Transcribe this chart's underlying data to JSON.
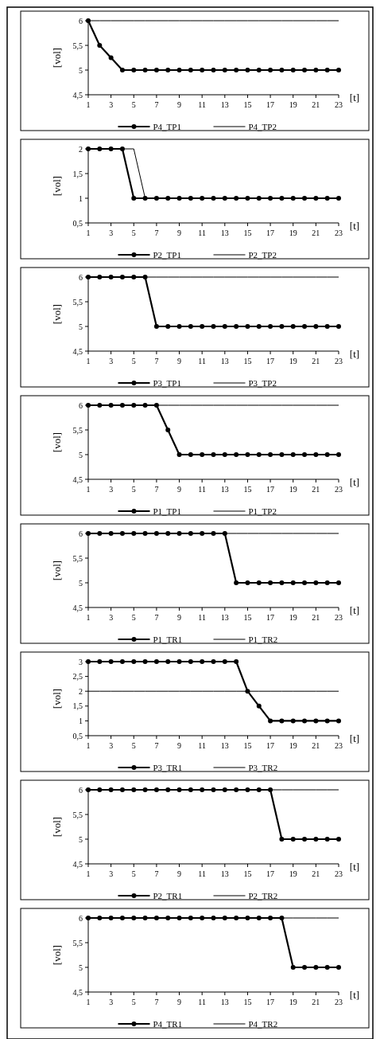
{
  "chart_data": [
    {
      "type": "line",
      "ylabel": "[vol]",
      "xlabel": "[t]",
      "x": [
        1,
        2,
        3,
        4,
        5,
        6,
        7,
        8,
        9,
        10,
        11,
        12,
        13,
        14,
        15,
        16,
        17,
        18,
        19,
        20,
        21,
        22,
        23
      ],
      "xlim": [
        1,
        23
      ],
      "xticks": [
        1,
        3,
        5,
        7,
        9,
        11,
        13,
        15,
        17,
        19,
        21,
        23
      ],
      "ylim": [
        4.5,
        6
      ],
      "yticks": [
        {
          "value": 4.5,
          "label": "4,5"
        },
        5,
        {
          "value": 5.5,
          "label": "5,5"
        },
        6
      ],
      "legend": "bottom",
      "series": [
        {
          "name": "P4_TP1",
          "color": "#000000",
          "marker": "circle",
          "values": [
            6,
            5.5,
            5.25,
            5,
            5,
            5,
            5,
            5,
            5,
            5,
            5,
            5,
            5,
            5,
            5,
            5,
            5,
            5,
            5,
            5,
            5,
            5,
            5
          ]
        },
        {
          "name": "P4_TP2",
          "color": "#000000",
          "marker": "none",
          "values": [
            6,
            6,
            6,
            6,
            6,
            6,
            6,
            6,
            6,
            6,
            6,
            6,
            6,
            6,
            6,
            6,
            6,
            6,
            6,
            6,
            6,
            6,
            6
          ]
        }
      ]
    },
    {
      "type": "line",
      "ylabel": "[vol]",
      "xlabel": "[t]",
      "x": [
        1,
        2,
        3,
        4,
        5,
        6,
        7,
        8,
        9,
        10,
        11,
        12,
        13,
        14,
        15,
        16,
        17,
        18,
        19,
        20,
        21,
        22,
        23
      ],
      "xlim": [
        1,
        23
      ],
      "xticks": [
        1,
        3,
        5,
        7,
        9,
        11,
        13,
        15,
        17,
        19,
        21,
        23
      ],
      "ylim": [
        0.5,
        2
      ],
      "yticks": [
        {
          "value": 0.5,
          "label": "0,5"
        },
        1,
        {
          "value": 1.5,
          "label": "1,5"
        },
        2
      ],
      "legend": "bottom",
      "series": [
        {
          "name": "P2_TP1",
          "color": "#000000",
          "marker": "circle",
          "values": [
            2,
            2,
            2,
            2,
            1,
            1,
            1,
            1,
            1,
            1,
            1,
            1,
            1,
            1,
            1,
            1,
            1,
            1,
            1,
            1,
            1,
            1,
            1
          ]
        },
        {
          "name": "P2_TP2",
          "color": "#000000",
          "marker": "none",
          "values": [
            2,
            2,
            2,
            2,
            2,
            1,
            1,
            1,
            1,
            1,
            1,
            1,
            1,
            1,
            1,
            1,
            1,
            1,
            1,
            1,
            1,
            1,
            1
          ]
        }
      ]
    },
    {
      "type": "line",
      "ylabel": "[vol]",
      "xlabel": "[t]",
      "x": [
        1,
        2,
        3,
        4,
        5,
        6,
        7,
        8,
        9,
        10,
        11,
        12,
        13,
        14,
        15,
        16,
        17,
        18,
        19,
        20,
        21,
        22,
        23
      ],
      "xlim": [
        1,
        23
      ],
      "xticks": [
        1,
        3,
        5,
        7,
        9,
        11,
        13,
        15,
        17,
        19,
        21,
        23
      ],
      "ylim": [
        4.5,
        6
      ],
      "yticks": [
        {
          "value": 4.5,
          "label": "4,5"
        },
        5,
        {
          "value": 5.5,
          "label": "5,5"
        },
        6
      ],
      "legend": "bottom",
      "series": [
        {
          "name": "P3_TP1",
          "color": "#000000",
          "marker": "circle",
          "values": [
            6,
            6,
            6,
            6,
            6,
            6,
            5,
            5,
            5,
            5,
            5,
            5,
            5,
            5,
            5,
            5,
            5,
            5,
            5,
            5,
            5,
            5,
            5
          ]
        },
        {
          "name": "P3_TP2",
          "color": "#000000",
          "marker": "none",
          "values": [
            6,
            6,
            6,
            6,
            6,
            6,
            6,
            6,
            6,
            6,
            6,
            6,
            6,
            6,
            6,
            6,
            6,
            6,
            6,
            6,
            6,
            6,
            6
          ]
        }
      ]
    },
    {
      "type": "line",
      "ylabel": "[vol]",
      "xlabel": "[t]",
      "x": [
        1,
        2,
        3,
        4,
        5,
        6,
        7,
        8,
        9,
        10,
        11,
        12,
        13,
        14,
        15,
        16,
        17,
        18,
        19,
        20,
        21,
        22,
        23
      ],
      "xlim": [
        1,
        23
      ],
      "xticks": [
        1,
        3,
        5,
        7,
        9,
        11,
        13,
        15,
        17,
        19,
        21,
        23
      ],
      "ylim": [
        4.5,
        6
      ],
      "yticks": [
        {
          "value": 4.5,
          "label": "4,5"
        },
        5,
        {
          "value": 5.5,
          "label": "5,5"
        },
        6
      ],
      "legend": "bottom",
      "series": [
        {
          "name": "P1_TP1",
          "color": "#000000",
          "marker": "circle",
          "values": [
            6,
            6,
            6,
            6,
            6,
            6,
            6,
            5.5,
            5,
            5,
            5,
            5,
            5,
            5,
            5,
            5,
            5,
            5,
            5,
            5,
            5,
            5,
            5
          ]
        },
        {
          "name": "P1_TP2",
          "color": "#000000",
          "marker": "none",
          "values": [
            6,
            6,
            6,
            6,
            6,
            6,
            6,
            6,
            6,
            6,
            6,
            6,
            6,
            6,
            6,
            6,
            6,
            6,
            6,
            6,
            6,
            6,
            6
          ]
        }
      ]
    },
    {
      "type": "line",
      "ylabel": "[vol]",
      "xlabel": "[t]",
      "x": [
        1,
        2,
        3,
        4,
        5,
        6,
        7,
        8,
        9,
        10,
        11,
        12,
        13,
        14,
        15,
        16,
        17,
        18,
        19,
        20,
        21,
        22,
        23
      ],
      "xlim": [
        1,
        23
      ],
      "xticks": [
        1,
        3,
        5,
        7,
        9,
        11,
        13,
        15,
        17,
        19,
        21,
        23
      ],
      "ylim": [
        4.5,
        6
      ],
      "yticks": [
        {
          "value": 4.5,
          "label": "4,5"
        },
        5,
        {
          "value": 5.5,
          "label": "5,5"
        },
        6
      ],
      "legend": "bottom",
      "series": [
        {
          "name": "P1_TR1",
          "color": "#000000",
          "marker": "circle",
          "values": [
            6,
            6,
            6,
            6,
            6,
            6,
            6,
            6,
            6,
            6,
            6,
            6,
            6,
            5,
            5,
            5,
            5,
            5,
            5,
            5,
            5,
            5,
            5
          ]
        },
        {
          "name": "P1_TR2",
          "color": "#000000",
          "marker": "none",
          "values": [
            6,
            6,
            6,
            6,
            6,
            6,
            6,
            6,
            6,
            6,
            6,
            6,
            6,
            6,
            6,
            6,
            6,
            6,
            6,
            6,
            6,
            6,
            6
          ]
        }
      ]
    },
    {
      "type": "line",
      "ylabel": "[vol]",
      "xlabel": "[t]",
      "x": [
        1,
        2,
        3,
        4,
        5,
        6,
        7,
        8,
        9,
        10,
        11,
        12,
        13,
        14,
        15,
        16,
        17,
        18,
        19,
        20,
        21,
        22,
        23
      ],
      "xlim": [
        1,
        23
      ],
      "xticks": [
        1,
        3,
        5,
        7,
        9,
        11,
        13,
        15,
        17,
        19,
        21,
        23
      ],
      "ylim": [
        0.5,
        3
      ],
      "yticks": [
        {
          "value": 0.5,
          "label": "0,5"
        },
        1,
        {
          "value": 1.5,
          "label": "1,5"
        },
        2,
        {
          "value": 2.5,
          "label": "2,5"
        },
        3
      ],
      "legend": "bottom",
      "series": [
        {
          "name": "P3_TR1",
          "color": "#000000",
          "marker": "circle",
          "values": [
            3,
            3,
            3,
            3,
            3,
            3,
            3,
            3,
            3,
            3,
            3,
            3,
            3,
            3,
            2,
            1.5,
            1,
            1,
            1,
            1,
            1,
            1,
            1
          ]
        },
        {
          "name": "P3_TR2",
          "color": "#000000",
          "marker": "none",
          "values": [
            2,
            2,
            2,
            2,
            2,
            2,
            2,
            2,
            2,
            2,
            2,
            2,
            2,
            2,
            2,
            2,
            2,
            2,
            2,
            2,
            2,
            2,
            2
          ]
        }
      ]
    },
    {
      "type": "line",
      "ylabel": "[vol]",
      "xlabel": "[t]",
      "x": [
        1,
        2,
        3,
        4,
        5,
        6,
        7,
        8,
        9,
        10,
        11,
        12,
        13,
        14,
        15,
        16,
        17,
        18,
        19,
        20,
        21,
        22,
        23
      ],
      "xlim": [
        1,
        23
      ],
      "xticks": [
        1,
        3,
        5,
        7,
        9,
        11,
        13,
        15,
        17,
        19,
        21,
        23
      ],
      "ylim": [
        4.5,
        6
      ],
      "yticks": [
        {
          "value": 4.5,
          "label": "4,5"
        },
        5,
        {
          "value": 5.5,
          "label": "5,5"
        },
        6
      ],
      "legend": "bottom",
      "series": [
        {
          "name": "P2_TR1",
          "color": "#000000",
          "marker": "circle",
          "values": [
            6,
            6,
            6,
            6,
            6,
            6,
            6,
            6,
            6,
            6,
            6,
            6,
            6,
            6,
            6,
            6,
            6,
            5,
            5,
            5,
            5,
            5,
            5
          ]
        },
        {
          "name": "P2_TR2",
          "color": "#000000",
          "marker": "none",
          "values": [
            6,
            6,
            6,
            6,
            6,
            6,
            6,
            6,
            6,
            6,
            6,
            6,
            6,
            6,
            6,
            6,
            6,
            6,
            6,
            6,
            6,
            6,
            6
          ]
        }
      ]
    },
    {
      "type": "line",
      "ylabel": "[vol]",
      "xlabel": "[t]",
      "x": [
        1,
        2,
        3,
        4,
        5,
        6,
        7,
        8,
        9,
        10,
        11,
        12,
        13,
        14,
        15,
        16,
        17,
        18,
        19,
        20,
        21,
        22,
        23
      ],
      "xlim": [
        1,
        23
      ],
      "xticks": [
        1,
        3,
        5,
        7,
        9,
        11,
        13,
        15,
        17,
        19,
        21,
        23
      ],
      "ylim": [
        4.5,
        6
      ],
      "yticks": [
        {
          "value": 4.5,
          "label": "4,5"
        },
        5,
        {
          "value": 5.5,
          "label": "5,5"
        },
        6
      ],
      "legend": "bottom",
      "series": [
        {
          "name": "P4_TR1",
          "color": "#000000",
          "marker": "circle",
          "values": [
            6,
            6,
            6,
            6,
            6,
            6,
            6,
            6,
            6,
            6,
            6,
            6,
            6,
            6,
            6,
            6,
            6,
            6,
            5,
            5,
            5,
            5,
            5
          ]
        },
        {
          "name": "P4_TR2",
          "color": "#000000",
          "marker": "none",
          "values": [
            6,
            6,
            6,
            6,
            6,
            6,
            6,
            6,
            6,
            6,
            6,
            6,
            6,
            6,
            6,
            6,
            6,
            6,
            6,
            6,
            6,
            6,
            6
          ]
        }
      ]
    }
  ]
}
